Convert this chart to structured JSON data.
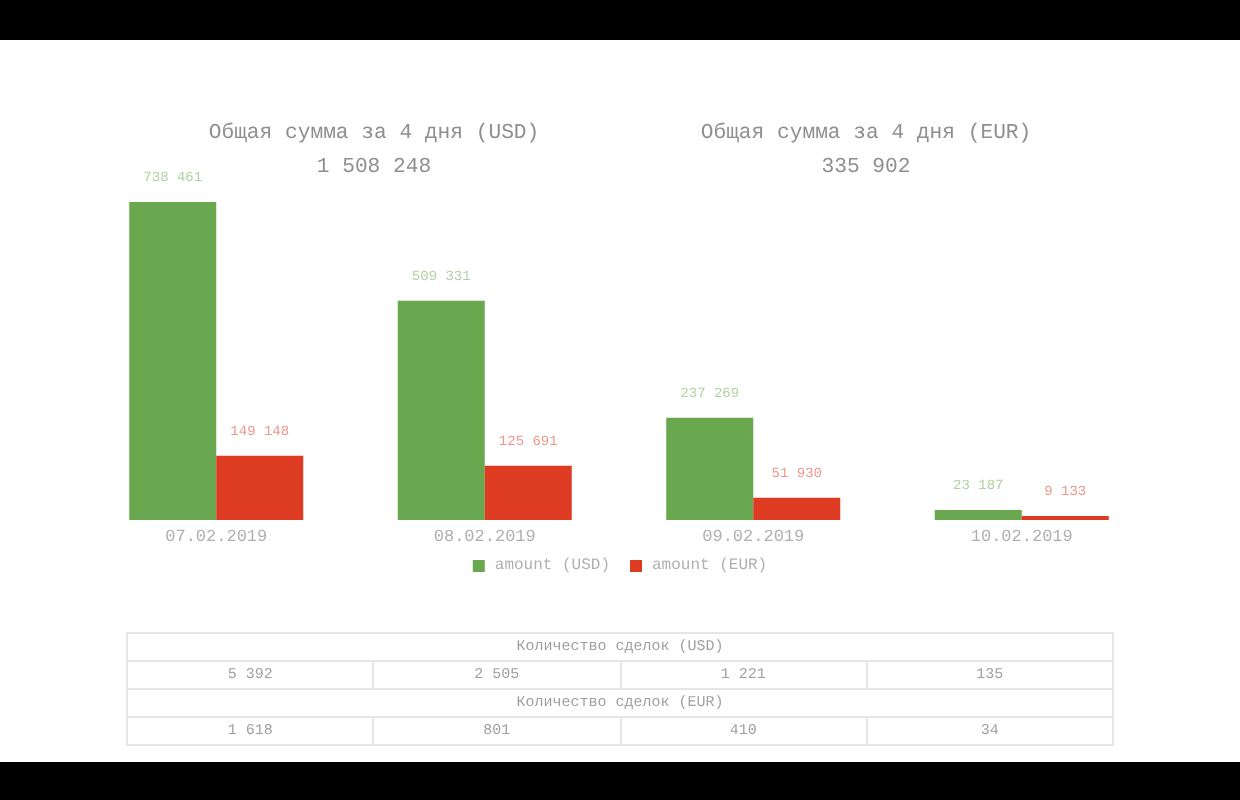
{
  "chart_data": [
    {
      "type": "other",
      "title": "Общая сумма за 4 дня (USD)",
      "annotations": [
        "1 508 248"
      ]
    },
    {
      "type": "other",
      "title": "Общая сумма за 4 дня (EUR)",
      "annotations": [
        "335 902"
      ]
    },
    {
      "type": "bar",
      "categories": [
        "07.02.2019",
        "08.02.2019",
        "09.02.2019",
        "10.02.2019"
      ],
      "series": [
        {
          "name": "amount (USD)",
          "color": "#6aa84f",
          "values": [
            738461,
            509331,
            237269,
            23187
          ],
          "value_labels": [
            "738 461",
            "509 331",
            "237 269",
            "23 187"
          ]
        },
        {
          "name": "amount (EUR)",
          "color": "#dd3b22",
          "values": [
            149148,
            125691,
            51930,
            9133
          ],
          "value_labels": [
            "149 148",
            "125 691",
            "51 930",
            "9 133"
          ]
        }
      ],
      "legend": "bottom",
      "tick_labels": "x"
    },
    {
      "type": "other",
      "categories": [
        null,
        null,
        null,
        null
      ],
      "annotations": [
        "Количество сделок (USD)",
        "5 392",
        "2 505",
        "1 221",
        "135",
        "Количество сделок (EUR)",
        "1 618",
        "801",
        "410",
        "34"
      ]
    }
  ]
}
